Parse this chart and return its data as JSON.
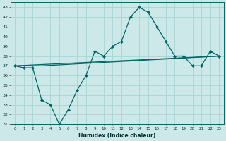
{
  "xlabel": "Humidex (Indice chaleur)",
  "bg_color": "#cce8e8",
  "grid_color": "#aad4d4",
  "line_color": "#006666",
  "xlim": [
    -0.5,
    23.5
  ],
  "ylim": [
    31,
    43.5
  ],
  "yticks": [
    31,
    32,
    33,
    34,
    35,
    36,
    37,
    38,
    39,
    40,
    41,
    42,
    43
  ],
  "xticks": [
    0,
    1,
    2,
    3,
    4,
    5,
    6,
    7,
    8,
    9,
    10,
    11,
    12,
    13,
    14,
    15,
    16,
    17,
    18,
    19,
    20,
    21,
    22,
    23
  ],
  "series": [
    {
      "x": [
        0,
        1,
        2,
        3,
        4,
        5,
        6,
        7,
        8,
        9,
        10,
        11,
        12,
        13,
        14,
        15,
        16,
        17,
        18,
        19,
        20,
        21,
        22,
        23
      ],
      "y": [
        37,
        36.8,
        36.8,
        33.5,
        33,
        31,
        32.5,
        34.5,
        36,
        38.5,
        38,
        39,
        39.5,
        42,
        43,
        42.5,
        41,
        39.5,
        38,
        38,
        37,
        37,
        38.5,
        38
      ],
      "marker": "D",
      "markersize": 2.0,
      "linewidth": 0.9
    },
    {
      "x": [
        0,
        3,
        23
      ],
      "y": [
        37,
        37,
        38
      ],
      "marker": null,
      "linewidth": 0.9
    },
    {
      "x": [
        0,
        23
      ],
      "y": [
        37,
        38
      ],
      "marker": null,
      "linewidth": 0.9
    }
  ]
}
